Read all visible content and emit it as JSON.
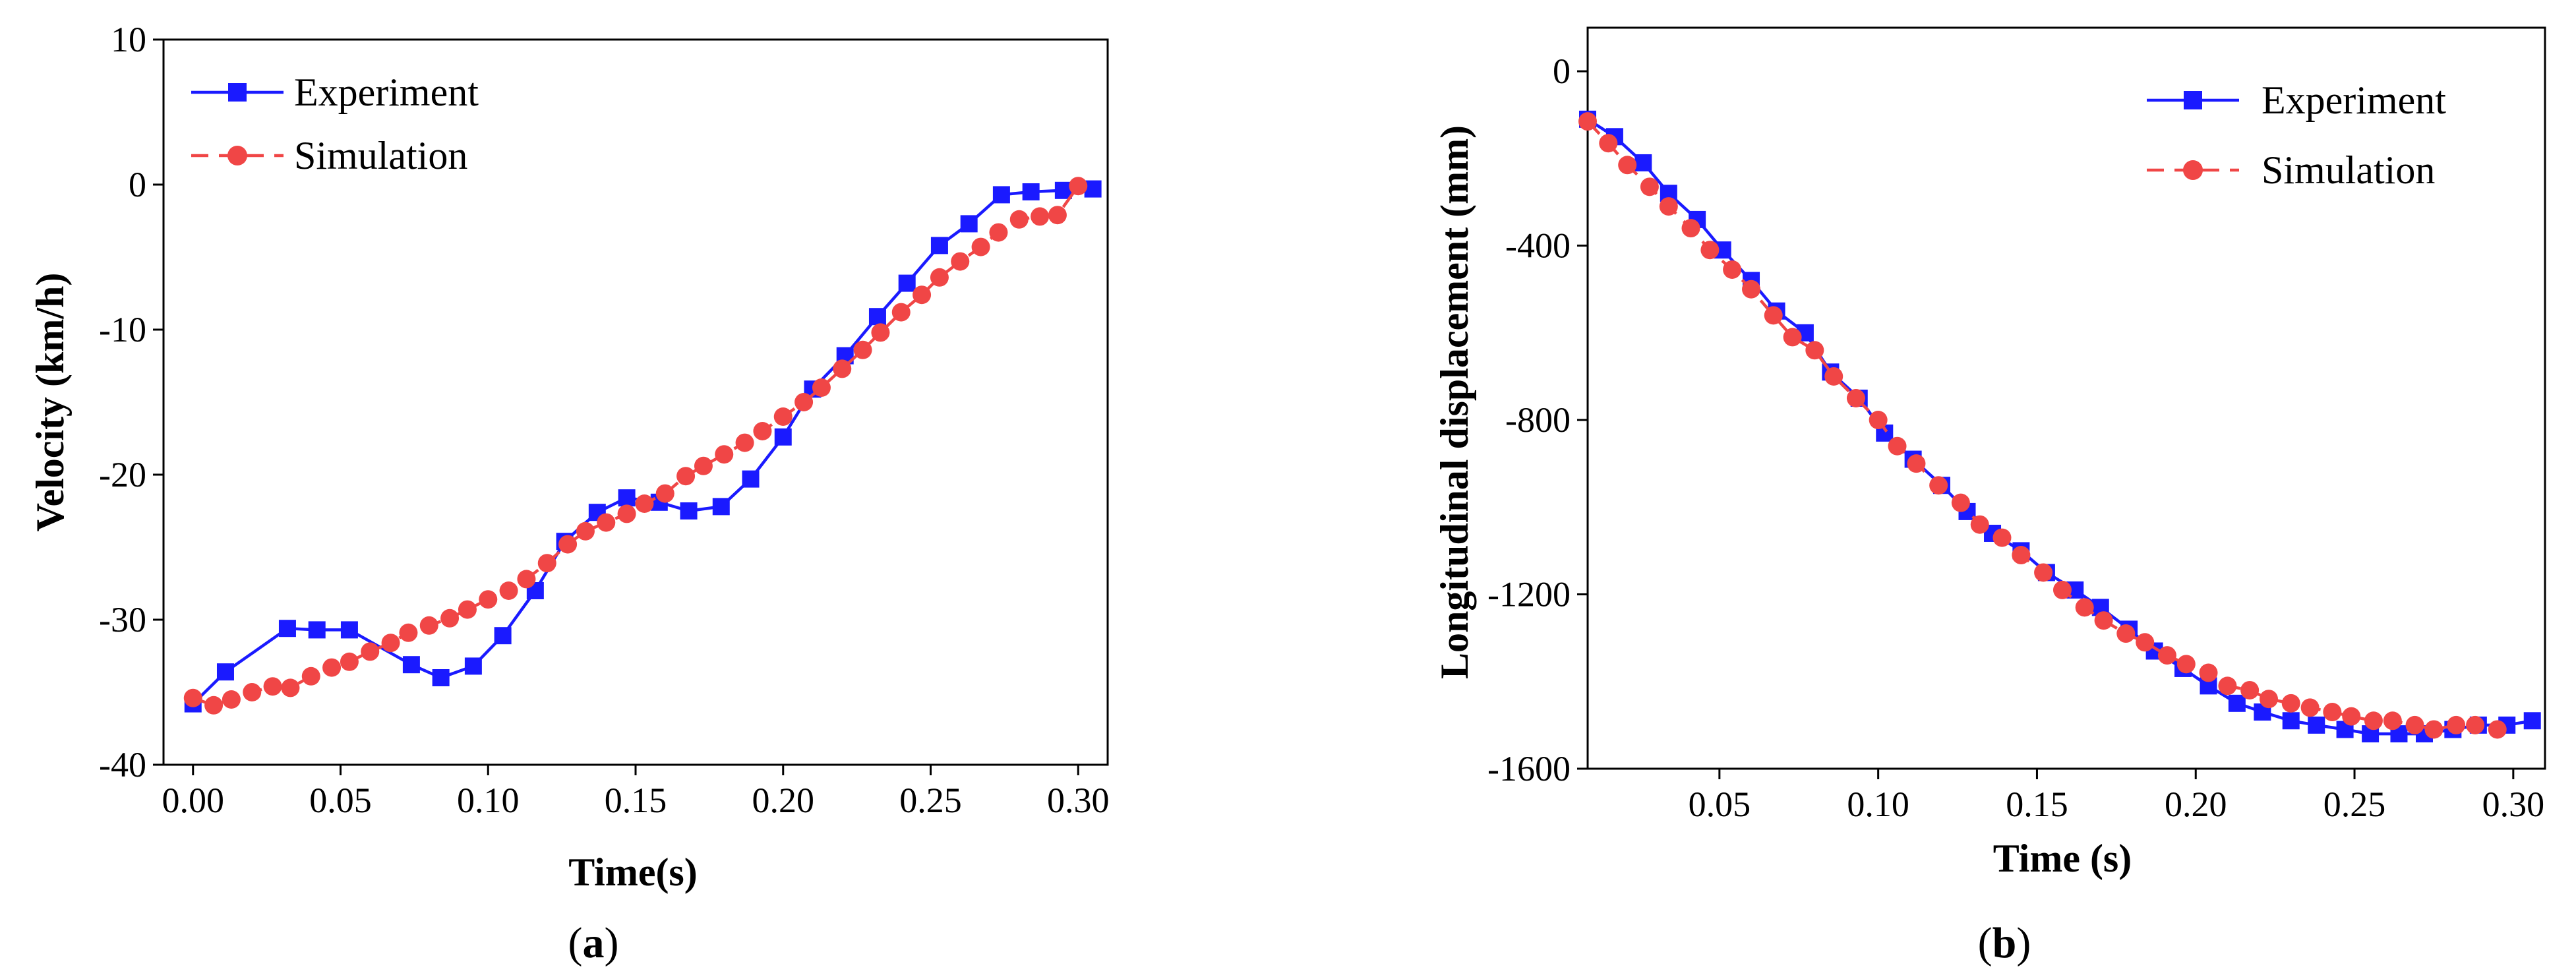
{
  "chart_data": [
    {
      "type": "line",
      "panel_label": {
        "open": "(",
        "letter": "a",
        "close": ")"
      },
      "xlabel": "Time(s)",
      "ylabel": "Velocity (km/h)",
      "xlim": [
        -0.01,
        0.31
      ],
      "ylim": [
        -40,
        10
      ],
      "xticks": [
        0.0,
        0.05,
        0.1,
        0.15,
        0.2,
        0.25,
        0.3
      ],
      "xtick_labels": [
        "0.00",
        "0.05",
        "0.10",
        "0.15",
        "0.20",
        "0.25",
        "0.30"
      ],
      "yticks": [
        -40,
        -30,
        -20,
        -10,
        0,
        10
      ],
      "ytick_labels": [
        "-40",
        "-30",
        "-20",
        "-10",
        "0",
        "10"
      ],
      "legend": {
        "position": "top-left"
      },
      "series": [
        {
          "name": "Experiment",
          "color": "#1a1aff",
          "marker": "square",
          "line": "solid",
          "x": [
            0.0,
            0.011,
            0.032,
            0.042,
            0.053,
            0.074,
            0.084,
            0.095,
            0.105,
            0.116,
            0.126,
            0.137,
            0.147,
            0.158,
            0.168,
            0.179,
            0.189,
            0.2,
            0.21,
            0.221,
            0.232,
            0.242,
            0.253,
            0.263,
            0.274,
            0.284,
            0.295,
            0.305
          ],
          "y": [
            -35.8,
            -33.6,
            -30.6,
            -30.7,
            -30.7,
            -33.1,
            -34.0,
            -33.2,
            -31.1,
            -28.0,
            -24.6,
            -22.6,
            -21.6,
            -21.9,
            -22.5,
            -22.2,
            -20.3,
            -17.4,
            -14.1,
            -11.8,
            -9.1,
            -6.8,
            -4.2,
            -2.7,
            -0.7,
            -0.5,
            -0.4,
            -0.3
          ]
        },
        {
          "name": "Simulation",
          "color": "#f04646",
          "marker": "circle",
          "line": "dashed",
          "x": [
            0.0,
            0.007,
            0.013,
            0.02,
            0.027,
            0.033,
            0.04,
            0.047,
            0.053,
            0.06,
            0.067,
            0.073,
            0.08,
            0.087,
            0.093,
            0.1,
            0.107,
            0.113,
            0.12,
            0.127,
            0.133,
            0.14,
            0.147,
            0.153,
            0.16,
            0.167,
            0.173,
            0.18,
            0.187,
            0.193,
            0.2,
            0.207,
            0.213,
            0.22,
            0.227,
            0.233,
            0.24,
            0.247,
            0.253,
            0.26,
            0.267,
            0.273,
            0.28,
            0.287,
            0.293,
            0.3
          ],
          "y": [
            -35.4,
            -35.9,
            -35.5,
            -35.0,
            -34.6,
            -34.7,
            -33.9,
            -33.3,
            -32.9,
            -32.2,
            -31.6,
            -30.9,
            -30.4,
            -29.9,
            -29.3,
            -28.6,
            -28.0,
            -27.2,
            -26.1,
            -24.8,
            -23.9,
            -23.3,
            -22.7,
            -22.0,
            -21.3,
            -20.1,
            -19.4,
            -18.6,
            -17.8,
            -17.0,
            -16.0,
            -15.0,
            -14.0,
            -12.7,
            -11.4,
            -10.2,
            -8.8,
            -7.6,
            -6.4,
            -5.3,
            -4.3,
            -3.3,
            -2.4,
            -2.2,
            -2.1,
            -0.1
          ]
        }
      ]
    },
    {
      "type": "line",
      "panel_label": {
        "open": "(",
        "letter": "b",
        "close": ")"
      },
      "xlabel": "Time (s)",
      "ylabel": "Longitudinal displacement (mm)",
      "xlim": [
        0.0085,
        0.31
      ],
      "ylim": [
        -1600,
        100
      ],
      "xticks": [
        0.05,
        0.1,
        0.15,
        0.2,
        0.25,
        0.3
      ],
      "xtick_labels": [
        "0.05",
        "0.10",
        "0.15",
        "0.20",
        "0.25",
        "0.30"
      ],
      "yticks": [
        -1600,
        -1200,
        -800,
        -400,
        0
      ],
      "ytick_labels": [
        "-1600",
        "-1200",
        "-800",
        "-400",
        "0"
      ],
      "legend": {
        "position": "top-right"
      },
      "series": [
        {
          "name": "Experiment",
          "color": "#1a1aff",
          "marker": "square",
          "line": "solid",
          "x": [
            0.0085,
            0.017,
            0.026,
            0.034,
            0.043,
            0.051,
            0.06,
            0.068,
            0.077,
            0.085,
            0.094,
            0.102,
            0.111,
            0.12,
            0.128,
            0.136,
            0.145,
            0.153,
            0.162,
            0.17,
            0.179,
            0.187,
            0.196,
            0.204,
            0.213,
            0.221,
            0.23,
            0.238,
            0.247,
            0.255,
            0.264,
            0.272,
            0.281,
            0.289,
            0.298,
            0.306
          ],
          "y": [
            -110,
            -150,
            -210,
            -280,
            -340,
            -410,
            -480,
            -550,
            -600,
            -690,
            -750,
            -830,
            -890,
            -950,
            -1010,
            -1060,
            -1100,
            -1150,
            -1190,
            -1230,
            -1280,
            -1330,
            -1370,
            -1410,
            -1450,
            -1470,
            -1490,
            -1500,
            -1510,
            -1520,
            -1520,
            -1520,
            -1510,
            -1500,
            -1500,
            -1490
          ]
        },
        {
          "name": "Simulation",
          "color": "#f04646",
          "marker": "circle",
          "line": "dashed",
          "x": [
            0.0085,
            0.015,
            0.021,
            0.028,
            0.034,
            0.041,
            0.047,
            0.054,
            0.06,
            0.067,
            0.073,
            0.08,
            0.086,
            0.093,
            0.1,
            0.106,
            0.112,
            0.119,
            0.126,
            0.132,
            0.139,
            0.145,
            0.152,
            0.158,
            0.165,
            0.171,
            0.178,
            0.184,
            0.191,
            0.197,
            0.204,
            0.21,
            0.217,
            0.223,
            0.23,
            0.236,
            0.243,
            0.249,
            0.256,
            0.262,
            0.269,
            0.275,
            0.282,
            0.288,
            0.295
          ],
          "y": [
            -115,
            -165,
            -215,
            -265,
            -310,
            -360,
            -410,
            -455,
            -500,
            -560,
            -610,
            -640,
            -700,
            -750,
            -800,
            -860,
            -900,
            -950,
            -990,
            -1040,
            -1070,
            -1110,
            -1150,
            -1190,
            -1230,
            -1260,
            -1290,
            -1310,
            -1340,
            -1360,
            -1380,
            -1410,
            -1420,
            -1440,
            -1450,
            -1460,
            -1470,
            -1480,
            -1490,
            -1490,
            -1500,
            -1510,
            -1500,
            -1500,
            -1510
          ]
        }
      ]
    }
  ]
}
